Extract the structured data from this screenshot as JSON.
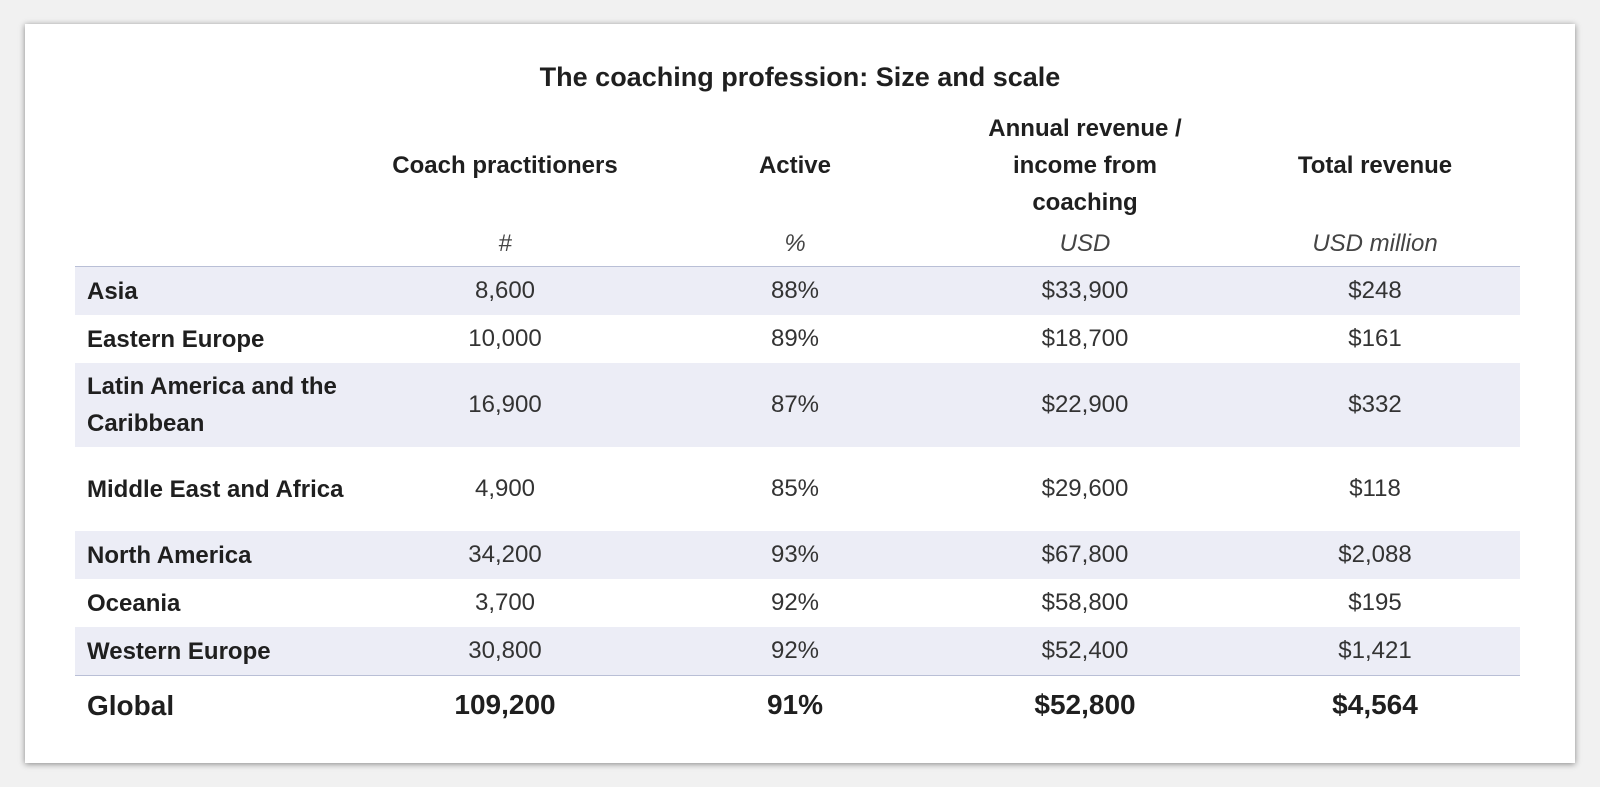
{
  "chart_data": {
    "type": "table",
    "title": "The coaching profession: Size and scale",
    "columns": [
      {
        "label": "Coach practitioners",
        "unit": "#"
      },
      {
        "label": "Active",
        "unit": "%"
      },
      {
        "label": "Annual revenue / income from coaching",
        "unit": "USD"
      },
      {
        "label": "Total revenue",
        "unit": "USD million"
      }
    ],
    "rows": [
      {
        "region": "Asia",
        "practitioners": "8,600",
        "active": "88%",
        "annual": "$33,900",
        "total": "$248"
      },
      {
        "region": "Eastern Europe",
        "practitioners": "10,000",
        "active": "89%",
        "annual": "$18,700",
        "total": "$161"
      },
      {
        "region": "Latin America and the Caribbean",
        "practitioners": "16,900",
        "active": "87%",
        "annual": "$22,900",
        "total": "$332"
      },
      {
        "region": "Middle East and Africa",
        "practitioners": "4,900",
        "active": "85%",
        "annual": "$29,600",
        "total": "$118"
      },
      {
        "region": "North America",
        "practitioners": "34,200",
        "active": "93%",
        "annual": "$67,800",
        "total": "$2,088"
      },
      {
        "region": "Oceania",
        "practitioners": "3,700",
        "active": "92%",
        "annual": "$58,800",
        "total": "$195"
      },
      {
        "region": "Western Europe",
        "practitioners": "30,800",
        "active": "92%",
        "annual": "$52,400",
        "total": "$1,421"
      }
    ],
    "total": {
      "region": "Global",
      "practitioners": "109,200",
      "active": "91%",
      "annual": "$52,800",
      "total": "$4,564"
    }
  },
  "colors": {
    "row_shade": "#ecedf6",
    "rule": "#b9bfd6"
  }
}
